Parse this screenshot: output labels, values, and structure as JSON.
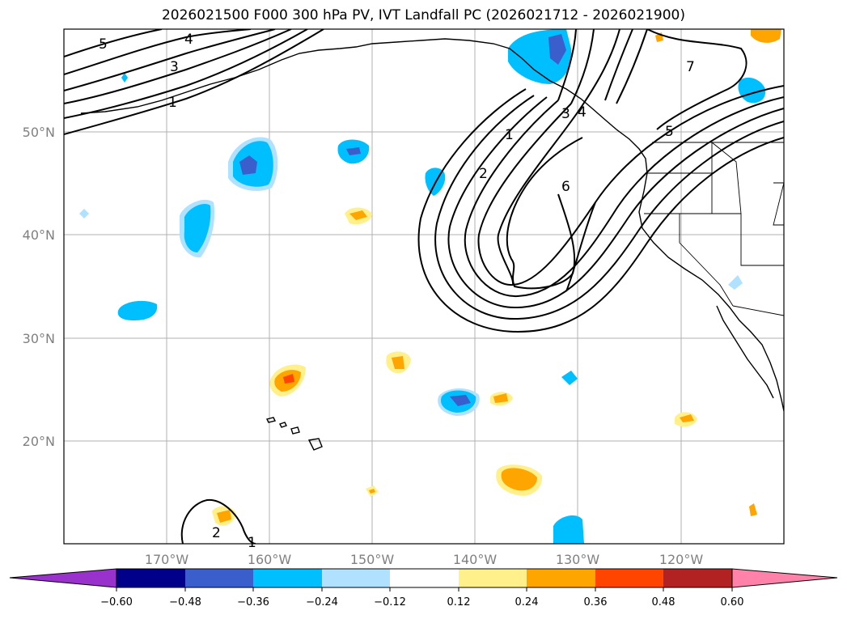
{
  "title": "2026021500 F000 300 hPa PV, IVT Landfall PC (2026021712 - 2026021900)",
  "axes": {
    "lat_labels": [
      "50°N",
      "40°N",
      "30°N",
      "20°N"
    ],
    "lon_labels": [
      "170°W",
      "160°W",
      "150°W",
      "140°W",
      "130°W",
      "120°W"
    ]
  },
  "colorbar": {
    "tick_labels": [
      "−0.60",
      "−0.48",
      "−0.36",
      "−0.24",
      "−0.12",
      "0.12",
      "0.24",
      "0.36",
      "0.48",
      "0.60"
    ],
    "colors": {
      "under": "#9932cc",
      "bins": [
        "#00008b",
        "#3a5fcd",
        "#00bfff",
        "#b0e2ff",
        "#ffffff",
        "#fff08c",
        "#ffa500",
        "#ff4500",
        "#b22222"
      ],
      "over": "#ff82ab"
    }
  },
  "contour_labels": {
    "ne_1": "1",
    "ne_2": "2",
    "ne_3": "3",
    "ne_4": "4",
    "ne_5": "5",
    "ne_6": "6",
    "ne_7": "7",
    "nw_1": "1",
    "nw_3": "3",
    "nw_4": "4",
    "nw_5": "5",
    "sw_2": "2",
    "sw_1": "1"
  },
  "colors": {
    "gridline": "#b0b0b0",
    "contour": "#000000",
    "coast": "#000000",
    "anom_dark_blue": "#3a5fcd",
    "anom_blue": "#00bfff",
    "anom_light_blue": "#b0e2ff",
    "anom_yellow": "#fff08c",
    "anom_orange": "#ffa500",
    "anom_red": "#ff4500"
  }
}
